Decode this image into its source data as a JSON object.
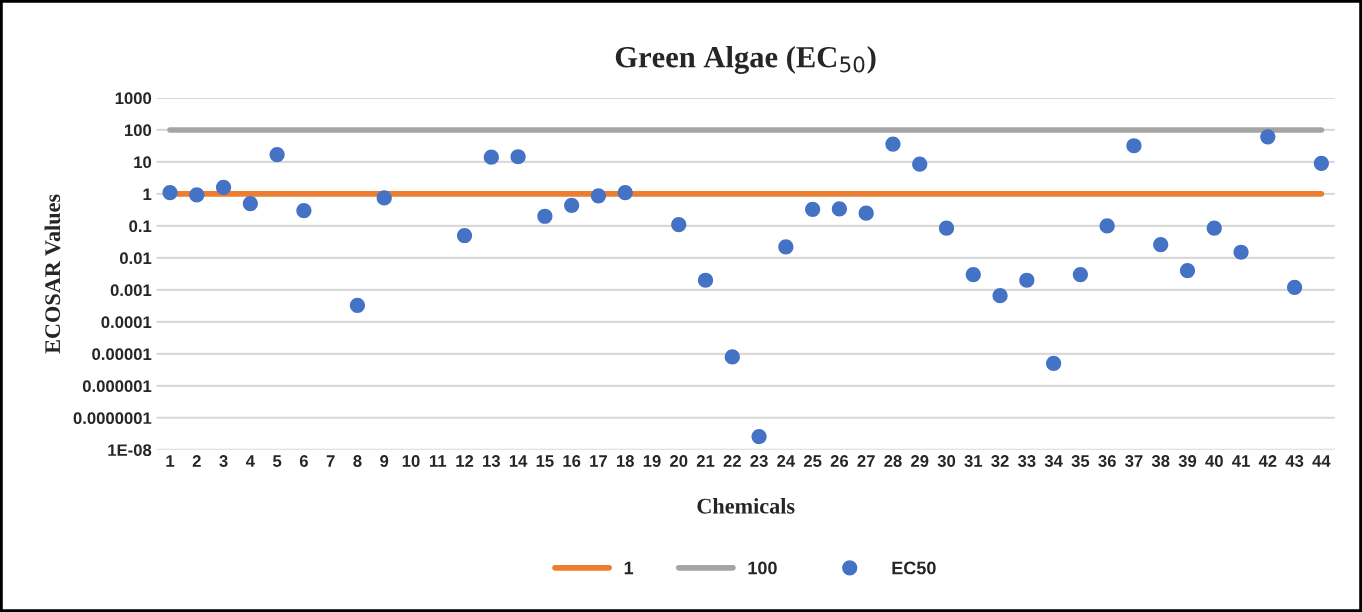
{
  "chart_data": {
    "type": "scatter",
    "title": "Green Algae (EC$_{50}$)",
    "xlabel": "Chemicals",
    "ylabel": "ECOSAR Values",
    "categories": [
      "1",
      "2",
      "3",
      "4",
      "5",
      "6",
      "7",
      "8",
      "9",
      "10",
      "11",
      "12",
      "13",
      "14",
      "15",
      "16",
      "17",
      "18",
      "19",
      "20",
      "21",
      "22",
      "23",
      "24",
      "25",
      "26",
      "27",
      "28",
      "29",
      "30",
      "31",
      "32",
      "33",
      "34",
      "35",
      "36",
      "37",
      "38",
      "39",
      "40",
      "41",
      "42",
      "43",
      "44"
    ],
    "series": [
      {
        "name": "1",
        "type": "line",
        "color": "#ed7d31",
        "line_style": "solid",
        "values": [
          1,
          1,
          1,
          1,
          1,
          1,
          1,
          1,
          1,
          1,
          1,
          1,
          1,
          1,
          1,
          1,
          1,
          1,
          1,
          1,
          1,
          1,
          1,
          1,
          1,
          1,
          1,
          1,
          1,
          1,
          1,
          1,
          1,
          1,
          1,
          1,
          1,
          1,
          1,
          1,
          1,
          1,
          1,
          1
        ]
      },
      {
        "name": "100",
        "type": "line",
        "color": "#a5a5a5",
        "line_style": "solid",
        "values": [
          100,
          100,
          100,
          100,
          100,
          100,
          100,
          100,
          100,
          100,
          100,
          100,
          100,
          100,
          100,
          100,
          100,
          100,
          100,
          100,
          100,
          100,
          100,
          100,
          100,
          100,
          100,
          100,
          100,
          100,
          100,
          100,
          100,
          100,
          100,
          100,
          100,
          100,
          100,
          100,
          100,
          100,
          100,
          100
        ]
      },
      {
        "name": "EC50",
        "marker": "circle",
        "color": "#4472c4",
        "values": [
          1.1,
          0.93,
          1.6,
          0.5,
          17,
          0.3,
          null,
          0.00033,
          0.75,
          null,
          null,
          0.05,
          14,
          14.5,
          0.2,
          0.44,
          0.87,
          1.1,
          null,
          0.11,
          0.002,
          8e-06,
          2.6e-08,
          0.022,
          0.33,
          0.34,
          0.25,
          36,
          8.5,
          0.085,
          0.003,
          0.00066,
          0.002,
          5e-06,
          0.003,
          0.1,
          32,
          0.026,
          0.004,
          0.085,
          0.015,
          61,
          0.0012,
          9
        ]
      }
    ],
    "log": "y",
    "ylim": [
      1e-08,
      1000
    ],
    "yticks": [
      {
        "value": 1e-08,
        "label": "1E-08"
      },
      {
        "value": 1e-07,
        "label": "0.0000001"
      },
      {
        "value": 1e-06,
        "label": "0.000001"
      },
      {
        "value": 1e-05,
        "label": "0.00001"
      },
      {
        "value": 0.0001,
        "label": "0.0001"
      },
      {
        "value": 0.001,
        "label": "0.001"
      },
      {
        "value": 0.01,
        "label": "0.01"
      },
      {
        "value": 0.1,
        "label": "0.1"
      },
      1,
      10,
      100,
      1000
    ],
    "grid": "y",
    "legend": "bottom"
  }
}
